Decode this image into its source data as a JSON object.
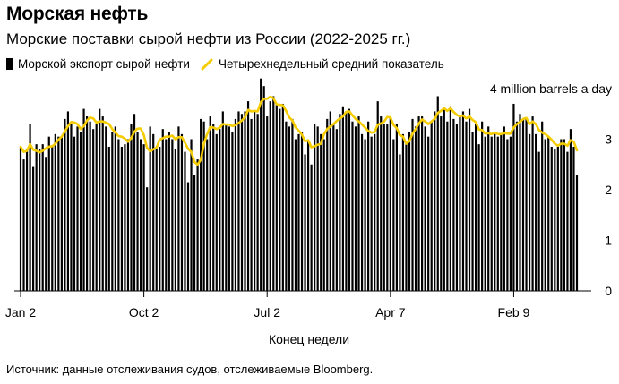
{
  "title": "Морская нефть",
  "subtitle": "Морские поставки сырой нефти из России (2022-2025 гг.)",
  "source": "Источник: данные отслеживания судов, отслеживаемые Bloomberg.",
  "colors": {
    "bar": "#000000",
    "line": "#f5cc00",
    "axis": "#000000"
  },
  "chart_data": {
    "type": "bar",
    "title": "Морская нефть",
    "subtitle": "Морские поставки сырой нефти из России (2022-2025 гг.)",
    "xlabel": "Конец недели",
    "ylabel": "4 million barrels a day",
    "ylim": [
      0,
      4
    ],
    "y_ticks": [
      0,
      1,
      2,
      3
    ],
    "x_ticks": [
      "Jan 2",
      "Oct 2",
      "Jul 2",
      "Apr 7",
      "Feb 9"
    ],
    "x_tick_index": [
      0,
      39,
      78,
      117,
      156
    ],
    "legend": {
      "bars": "Морской экспорт сырой нефти",
      "line": "Четырехнедельный средний показатель"
    },
    "series": [
      {
        "name": "Морской экспорт сырой нефти",
        "type": "bar",
        "values": [
          2.85,
          2.6,
          2.8,
          3.3,
          2.45,
          2.9,
          2.8,
          2.9,
          2.65,
          3.05,
          2.85,
          3.1,
          3.05,
          3.05,
          3.4,
          3.55,
          3.3,
          3.05,
          3.25,
          3.15,
          3.6,
          3.45,
          3.35,
          3.2,
          3.3,
          3.6,
          3.45,
          3.25,
          2.85,
          3.15,
          3.25,
          3.0,
          2.85,
          2.9,
          3.0,
          3.3,
          3.5,
          3.15,
          3.0,
          2.9,
          2.05,
          3.25,
          3.1,
          2.85,
          2.85,
          3.2,
          3.0,
          3.15,
          3.0,
          2.8,
          3.25,
          3.1,
          2.75,
          2.15,
          3.0,
          2.3,
          2.6,
          3.4,
          3.35,
          3.0,
          3.45,
          3.3,
          3.1,
          3.2,
          3.55,
          3.3,
          3.25,
          3.15,
          3.4,
          3.55,
          3.5,
          3.55,
          3.75,
          3.4,
          3.55,
          3.5,
          4.2,
          4.05,
          3.45,
          3.75,
          3.85,
          3.7,
          3.6,
          3.7,
          3.35,
          3.25,
          3.4,
          3.0,
          3.1,
          3.15,
          2.7,
          2.95,
          2.5,
          3.3,
          3.25,
          3.1,
          3.0,
          3.4,
          3.55,
          3.3,
          3.2,
          3.5,
          3.65,
          3.55,
          3.6,
          3.35,
          3.25,
          3.45,
          3.1,
          3.0,
          3.35,
          3.05,
          3.1,
          3.75,
          3.45,
          3.3,
          3.3,
          3.45,
          3.0,
          3.3,
          2.7,
          3.1,
          2.9,
          3.15,
          3.4,
          3.25,
          3.45,
          3.45,
          3.25,
          3.05,
          3.35,
          3.55,
          3.85,
          3.45,
          3.6,
          3.35,
          3.65,
          3.4,
          3.3,
          3.45,
          3.55,
          3.35,
          3.6,
          3.15,
          3.3,
          2.9,
          3.35,
          3.05,
          3.25,
          3.05,
          3.15,
          3.05,
          3.1,
          3.25,
          3.0,
          3.05,
          3.7,
          3.35,
          3.5,
          3.4,
          3.4,
          3.1,
          3.45,
          3.1,
          2.75,
          3.35,
          3.0,
          3.05,
          2.85,
          2.8,
          2.85,
          3.0,
          3.0,
          2.75,
          3.2,
          2.85,
          2.3
        ]
      },
      {
        "name": "Четырехнедельный средний показатель",
        "type": "line",
        "values": [
          2.85,
          2.75,
          2.77,
          2.9,
          2.79,
          2.77,
          2.74,
          2.77,
          2.82,
          2.85,
          2.86,
          2.91,
          2.99,
          3.05,
          3.15,
          3.26,
          3.34,
          3.33,
          3.3,
          3.2,
          3.26,
          3.37,
          3.43,
          3.41,
          3.33,
          3.35,
          3.35,
          3.33,
          3.3,
          3.2,
          3.13,
          3.06,
          3.05,
          3.01,
          2.95,
          3.02,
          3.15,
          3.21,
          3.21,
          3.08,
          2.83,
          2.76,
          2.8,
          2.83,
          2.99,
          3.02,
          3.05,
          3.05,
          3.07,
          3.0,
          3.04,
          3.04,
          2.93,
          2.81,
          2.75,
          2.55,
          2.5,
          2.59,
          2.91,
          3.1,
          3.24,
          3.23,
          3.2,
          3.23,
          3.3,
          3.29,
          3.29,
          3.26,
          3.28,
          3.32,
          3.37,
          3.43,
          3.58,
          3.55,
          3.56,
          3.55,
          3.73,
          3.8,
          3.8,
          3.84,
          3.81,
          3.69,
          3.68,
          3.67,
          3.56,
          3.43,
          3.37,
          3.23,
          3.17,
          3.09,
          2.96,
          2.98,
          2.84,
          2.86,
          2.89,
          2.91,
          3.1,
          3.2,
          3.25,
          3.3,
          3.36,
          3.41,
          3.45,
          3.54,
          3.55,
          3.47,
          3.4,
          3.35,
          3.29,
          3.23,
          3.16,
          3.13,
          3.14,
          3.29,
          3.31,
          3.35,
          3.44,
          3.43,
          3.28,
          3.22,
          3.08,
          3.05,
          2.91,
          2.96,
          3.11,
          3.2,
          3.31,
          3.39,
          3.35,
          3.3,
          3.35,
          3.4,
          3.52,
          3.56,
          3.61,
          3.56,
          3.61,
          3.54,
          3.48,
          3.45,
          3.47,
          3.41,
          3.45,
          3.38,
          3.34,
          3.19,
          3.18,
          3.11,
          3.12,
          3.1,
          3.13,
          3.1,
          3.1,
          3.12,
          3.11,
          3.11,
          3.23,
          3.3,
          3.34,
          3.4,
          3.42,
          3.3,
          3.35,
          3.3,
          3.18,
          3.13,
          3.1,
          3.05,
          2.99,
          2.91,
          2.87,
          2.91,
          2.91,
          2.87,
          2.98,
          2.95,
          2.78
        ]
      }
    ]
  }
}
